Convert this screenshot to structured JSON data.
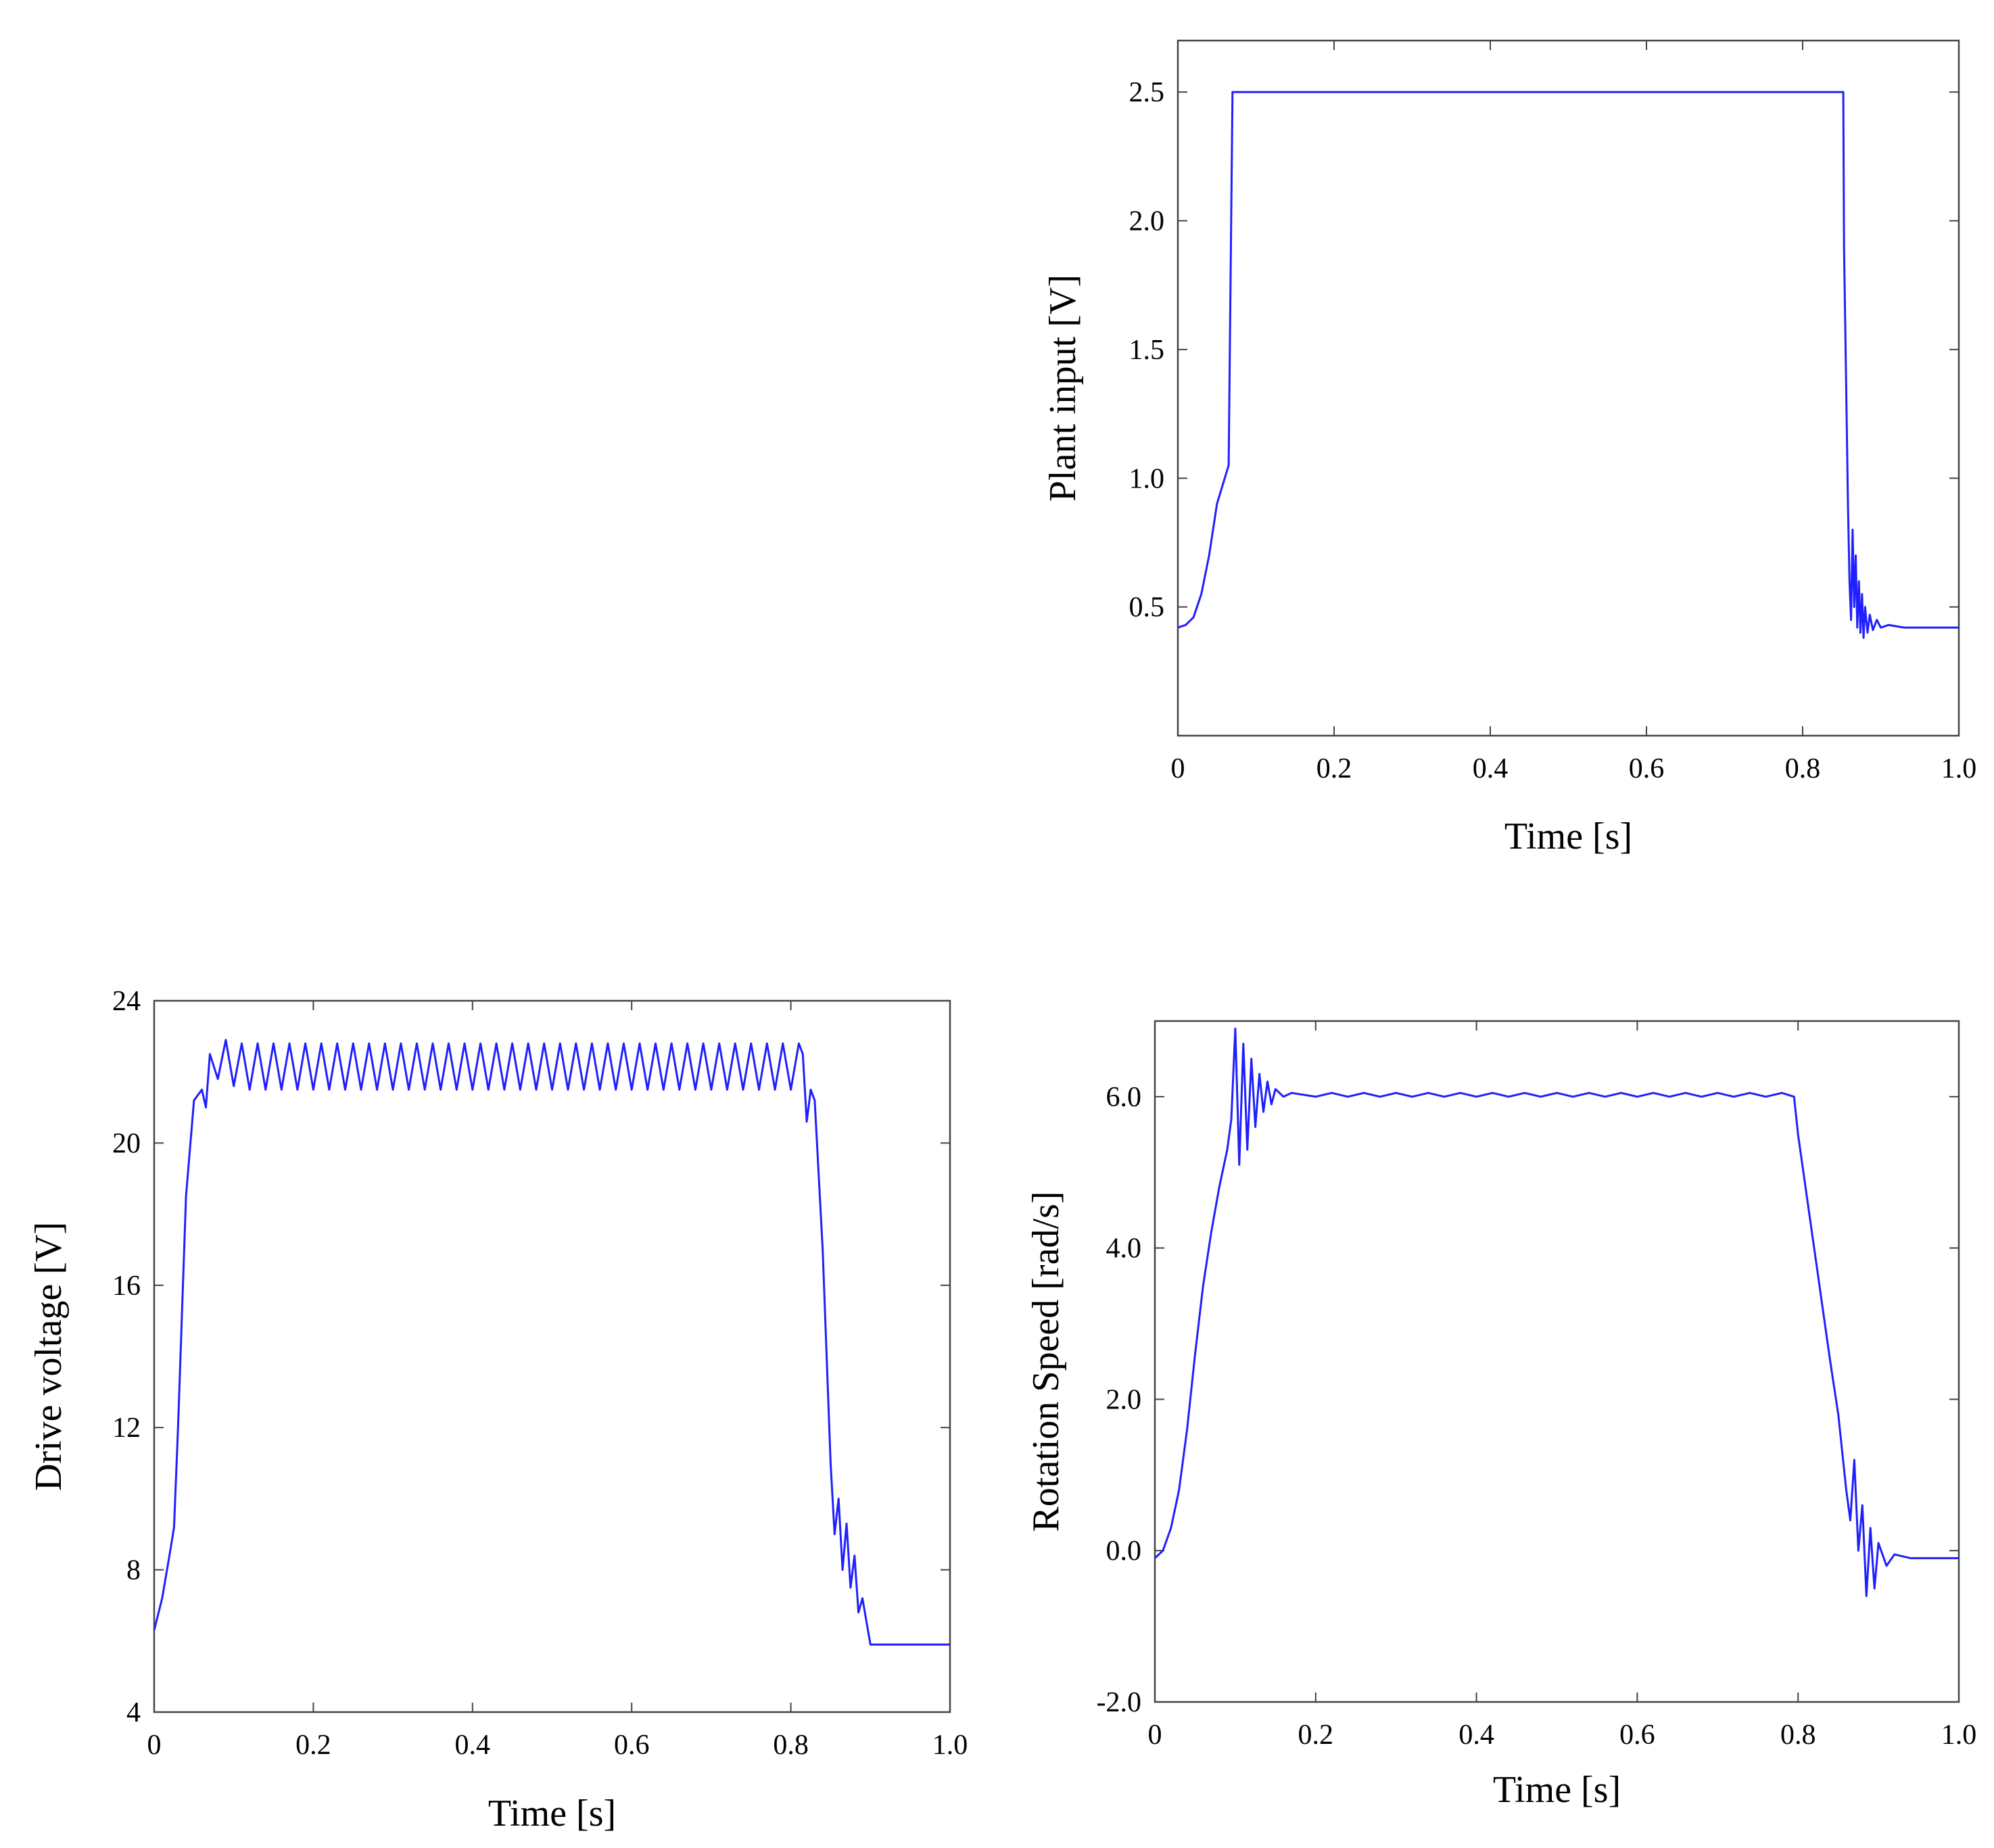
{
  "chart_data": [
    {
      "type": "line",
      "xlabel": "Time [s]",
      "ylabel": "Plant input [V]",
      "xlim": [
        0,
        1.0
      ],
      "ylim": [
        0.0,
        2.7
      ],
      "xticks": [
        0,
        0.2,
        0.4,
        0.6,
        0.8,
        1.0
      ],
      "xtick_labels": [
        "0",
        "0.2",
        "0.4",
        "0.6",
        "0.8",
        "1.0"
      ],
      "yticks": [
        0.5,
        1.0,
        1.5,
        2.0,
        2.5
      ],
      "ytick_labels": [
        "0.5",
        "1.0",
        "1.5",
        "2.0",
        "2.5"
      ],
      "grid": false,
      "color": "#1f1fff",
      "series": [
        {
          "x": [
            0,
            0.01,
            0.02,
            0.03,
            0.04,
            0.05,
            0.055,
            0.06,
            0.065,
            0.07,
            0.2,
            0.4,
            0.6,
            0.8,
            0.852,
            0.853,
            0.856,
            0.858,
            0.86,
            0.862,
            0.864,
            0.866,
            0.868,
            0.87,
            0.872,
            0.874,
            0.876,
            0.878,
            0.88,
            0.883,
            0.886,
            0.89,
            0.895,
            0.9,
            0.91,
            0.93,
            0.96,
            1.0
          ],
          "y": [
            0.42,
            0.43,
            0.46,
            0.55,
            0.7,
            0.9,
            0.95,
            1.0,
            1.05,
            2.5,
            2.5,
            2.5,
            2.5,
            2.5,
            2.5,
            1.9,
            1.3,
            0.9,
            0.6,
            0.45,
            0.8,
            0.5,
            0.7,
            0.42,
            0.6,
            0.4,
            0.55,
            0.38,
            0.5,
            0.4,
            0.47,
            0.41,
            0.45,
            0.42,
            0.43,
            0.42,
            0.42,
            0.42
          ]
        }
      ]
    },
    {
      "type": "line",
      "xlabel": "Time [s]",
      "ylabel": "Drive voltage  [V]",
      "xlim": [
        0,
        1.0
      ],
      "ylim": [
        4,
        24
      ],
      "xticks": [
        0,
        0.2,
        0.4,
        0.6,
        0.8,
        1.0
      ],
      "xtick_labels": [
        "0",
        "0.2",
        "0.4",
        "0.6",
        "0.8",
        "1.0"
      ],
      "yticks": [
        4,
        8,
        12,
        16,
        20,
        24
      ],
      "ytick_labels": [
        "4",
        "8",
        "12",
        "16",
        "20",
        "24"
      ],
      "grid": false,
      "color": "#1f1fff",
      "series": [
        {
          "x": [
            0,
            0.01,
            0.02,
            0.025,
            0.03,
            0.04,
            0.05,
            0.06,
            0.065,
            0.07,
            0.08,
            0.09,
            0.1,
            0.11,
            0.12,
            0.13,
            0.14,
            0.15,
            0.16,
            0.17,
            0.18,
            0.19,
            0.2,
            0.21,
            0.22,
            0.23,
            0.24,
            0.25,
            0.26,
            0.27,
            0.28,
            0.29,
            0.3,
            0.31,
            0.32,
            0.33,
            0.34,
            0.35,
            0.36,
            0.37,
            0.38,
            0.39,
            0.4,
            0.41,
            0.42,
            0.43,
            0.44,
            0.45,
            0.46,
            0.47,
            0.48,
            0.49,
            0.5,
            0.51,
            0.52,
            0.53,
            0.54,
            0.55,
            0.56,
            0.57,
            0.58,
            0.59,
            0.6,
            0.61,
            0.62,
            0.63,
            0.64,
            0.65,
            0.66,
            0.67,
            0.68,
            0.69,
            0.7,
            0.71,
            0.72,
            0.73,
            0.74,
            0.75,
            0.76,
            0.77,
            0.78,
            0.79,
            0.8,
            0.81,
            0.815,
            0.82,
            0.825,
            0.83,
            0.84,
            0.85,
            0.855,
            0.86,
            0.865,
            0.87,
            0.875,
            0.88,
            0.885,
            0.89,
            0.9,
            0.93,
            0.96,
            1.0
          ],
          "y": [
            6.3,
            7.2,
            8.5,
            9.2,
            12.0,
            18.5,
            21.2,
            21.5,
            21.0,
            22.5,
            21.8,
            22.9,
            21.6,
            22.8,
            21.5,
            22.8,
            21.5,
            22.8,
            21.5,
            22.8,
            21.5,
            22.8,
            21.5,
            22.8,
            21.5,
            22.8,
            21.5,
            22.8,
            21.5,
            22.8,
            21.5,
            22.8,
            21.5,
            22.8,
            21.5,
            22.8,
            21.5,
            22.8,
            21.5,
            22.8,
            21.5,
            22.8,
            21.5,
            22.8,
            21.5,
            22.8,
            21.5,
            22.8,
            21.5,
            22.8,
            21.5,
            22.8,
            21.5,
            22.8,
            21.5,
            22.8,
            21.5,
            22.8,
            21.5,
            22.8,
            21.5,
            22.8,
            21.5,
            22.8,
            21.5,
            22.8,
            21.5,
            22.8,
            21.5,
            22.8,
            21.5,
            22.8,
            21.5,
            22.8,
            21.5,
            22.8,
            21.5,
            22.8,
            21.5,
            22.8,
            21.5,
            22.8,
            21.5,
            22.8,
            22.5,
            20.6,
            21.5,
            21.2,
            17.0,
            11.0,
            9.0,
            10.0,
            8.0,
            9.3,
            7.5,
            8.4,
            6.8,
            7.2,
            5.9,
            5.9,
            5.9,
            5.9
          ]
        }
      ]
    },
    {
      "type": "line",
      "xlabel": "Time [s]",
      "ylabel": "Rotation Speed [rad/s]",
      "xlim": [
        0,
        1.0
      ],
      "ylim": [
        -2.0,
        7.0
      ],
      "xticks": [
        0,
        0.2,
        0.4,
        0.6,
        0.8,
        1.0
      ],
      "xtick_labels": [
        "0",
        "0.2",
        "0.4",
        "0.6",
        "0.8",
        "1.0"
      ],
      "yticks": [
        -2.0,
        0.0,
        2.0,
        4.0,
        6.0
      ],
      "ytick_labels": [
        "-2.0",
        "0.0",
        "2.0",
        "4.0",
        "6.0"
      ],
      "grid": false,
      "color": "#1f1fff",
      "series": [
        {
          "x": [
            0,
            0.01,
            0.02,
            0.03,
            0.04,
            0.05,
            0.06,
            0.07,
            0.08,
            0.09,
            0.095,
            0.1,
            0.105,
            0.11,
            0.115,
            0.12,
            0.125,
            0.13,
            0.135,
            0.14,
            0.145,
            0.15,
            0.16,
            0.17,
            0.2,
            0.22,
            0.24,
            0.26,
            0.28,
            0.3,
            0.32,
            0.34,
            0.36,
            0.38,
            0.4,
            0.42,
            0.44,
            0.46,
            0.48,
            0.5,
            0.52,
            0.54,
            0.56,
            0.58,
            0.6,
            0.62,
            0.64,
            0.66,
            0.68,
            0.7,
            0.72,
            0.74,
            0.76,
            0.78,
            0.795,
            0.8,
            0.82,
            0.84,
            0.85,
            0.86,
            0.865,
            0.87,
            0.875,
            0.88,
            0.885,
            0.89,
            0.895,
            0.9,
            0.91,
            0.92,
            0.94,
            1.0
          ],
          "y": [
            -0.1,
            0.0,
            0.3,
            0.8,
            1.6,
            2.6,
            3.5,
            4.2,
            4.8,
            5.3,
            5.7,
            6.9,
            5.1,
            6.7,
            5.3,
            6.5,
            5.6,
            6.3,
            5.8,
            6.2,
            5.9,
            6.1,
            6.0,
            6.05,
            6.0,
            6.05,
            6.0,
            6.05,
            6.0,
            6.05,
            6.0,
            6.05,
            6.0,
            6.05,
            6.0,
            6.05,
            6.0,
            6.05,
            6.0,
            6.05,
            6.0,
            6.05,
            6.0,
            6.05,
            6.0,
            6.05,
            6.0,
            6.05,
            6.0,
            6.05,
            6.0,
            6.05,
            6.0,
            6.05,
            6.0,
            5.5,
            4.0,
            2.5,
            1.8,
            0.8,
            0.4,
            1.2,
            0.0,
            0.6,
            -0.6,
            0.3,
            -0.5,
            0.1,
            -0.2,
            -0.05,
            -0.1,
            -0.1
          ]
        }
      ]
    }
  ]
}
